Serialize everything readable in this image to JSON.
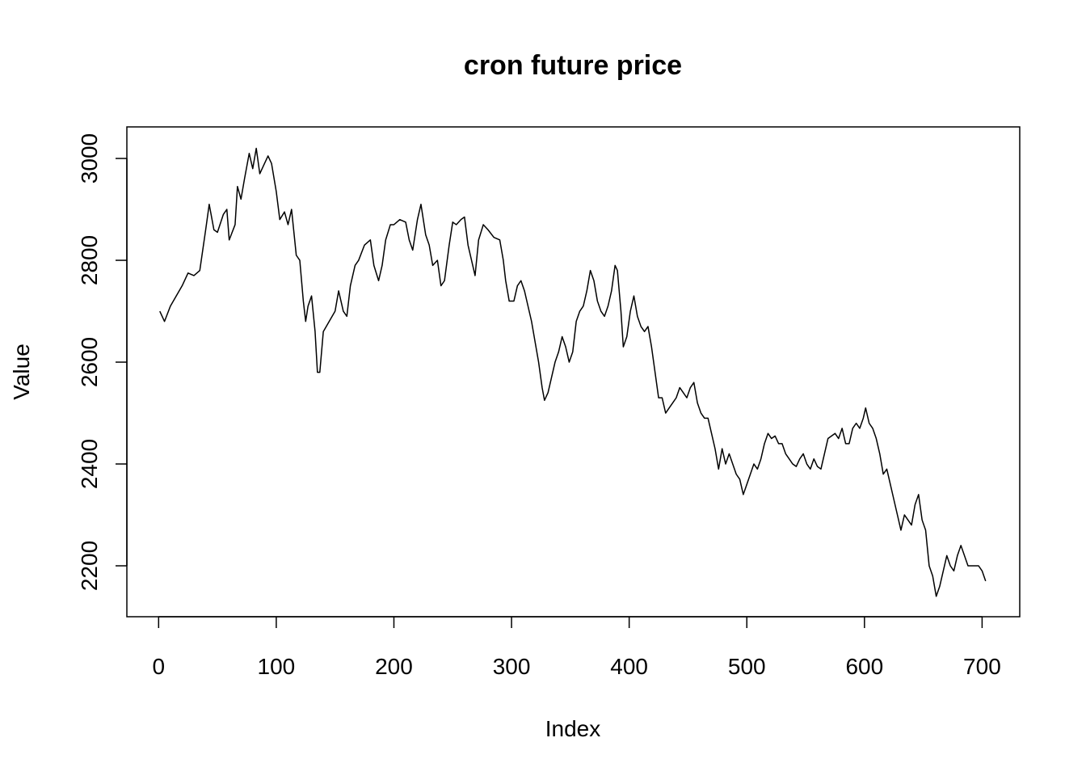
{
  "chart_data": {
    "type": "line",
    "title": "cron future price",
    "x_label": "Index",
    "y_label": "Value",
    "x": [
      1,
      5,
      10,
      15,
      20,
      25,
      30,
      35,
      40,
      43,
      47,
      50,
      55,
      58,
      60,
      65,
      67,
      70,
      73,
      77,
      80,
      83,
      86,
      90,
      93,
      96,
      100,
      103,
      107,
      110,
      113,
      117,
      120,
      123,
      125,
      127,
      130,
      133,
      135,
      137,
      140,
      145,
      150,
      153,
      157,
      160,
      163,
      167,
      170,
      175,
      180,
      183,
      187,
      190,
      193,
      197,
      200,
      205,
      210,
      213,
      216,
      220,
      223,
      227,
      230,
      233,
      237,
      240,
      243,
      247,
      250,
      253,
      257,
      260,
      263,
      266,
      269,
      272,
      276,
      280,
      285,
      290,
      293,
      295,
      298,
      302,
      305,
      308,
      311,
      314,
      317,
      320,
      323,
      326,
      328,
      331,
      334,
      337,
      340,
      343,
      346,
      349,
      352,
      355,
      358,
      361,
      364,
      367,
      370,
      373,
      376,
      379,
      382,
      385,
      388,
      390,
      393,
      395,
      398,
      401,
      404,
      407,
      410,
      413,
      416,
      419,
      422,
      425,
      428,
      431,
      434,
      437,
      440,
      443,
      446,
      449,
      452,
      455,
      458,
      461,
      464,
      467,
      470,
      473,
      476,
      479,
      482,
      485,
      488,
      491,
      494,
      497,
      500,
      503,
      506,
      509,
      512,
      515,
      518,
      521,
      524,
      527,
      530,
      533,
      536,
      539,
      542,
      545,
      548,
      551,
      554,
      557,
      560,
      563,
      566,
      569,
      572,
      575,
      578,
      581,
      584,
      587,
      590,
      593,
      596,
      599,
      601,
      604,
      607,
      610,
      613,
      616,
      619,
      622,
      625,
      628,
      631,
      634,
      637,
      640,
      643,
      646,
      649,
      652,
      655,
      658,
      661,
      664,
      667,
      670,
      673,
      676,
      679,
      682,
      685,
      688,
      691,
      694,
      697,
      700,
      703
    ],
    "series": [
      {
        "name": "Value",
        "color": "#000000",
        "values": [
          2700,
          2680,
          2710,
          2730,
          2750,
          2775,
          2770,
          2780,
          2860,
          2910,
          2860,
          2855,
          2890,
          2900,
          2840,
          2870,
          2945,
          2920,
          2960,
          3010,
          2980,
          3020,
          2970,
          2990,
          3005,
          2990,
          2935,
          2880,
          2895,
          2870,
          2900,
          2810,
          2800,
          2720,
          2680,
          2710,
          2730,
          2660,
          2580,
          2580,
          2660,
          2680,
          2700,
          2740,
          2700,
          2690,
          2750,
          2790,
          2800,
          2830,
          2840,
          2790,
          2760,
          2790,
          2840,
          2870,
          2870,
          2880,
          2875,
          2840,
          2820,
          2880,
          2910,
          2850,
          2830,
          2790,
          2800,
          2750,
          2760,
          2830,
          2875,
          2870,
          2880,
          2885,
          2830,
          2800,
          2770,
          2840,
          2870,
          2860,
          2845,
          2840,
          2800,
          2760,
          2720,
          2720,
          2750,
          2760,
          2740,
          2710,
          2680,
          2640,
          2600,
          2550,
          2525,
          2540,
          2570,
          2600,
          2620,
          2650,
          2630,
          2600,
          2620,
          2680,
          2700,
          2710,
          2740,
          2780,
          2760,
          2720,
          2700,
          2690,
          2710,
          2740,
          2790,
          2780,
          2700,
          2630,
          2650,
          2700,
          2730,
          2690,
          2670,
          2660,
          2670,
          2630,
          2580,
          2530,
          2530,
          2500,
          2510,
          2520,
          2530,
          2550,
          2540,
          2530,
          2550,
          2560,
          2520,
          2500,
          2490,
          2490,
          2460,
          2430,
          2390,
          2430,
          2400,
          2420,
          2400,
          2380,
          2370,
          2340,
          2360,
          2380,
          2400,
          2390,
          2410,
          2440,
          2460,
          2450,
          2455,
          2440,
          2440,
          2420,
          2410,
          2400,
          2395,
          2410,
          2420,
          2400,
          2390,
          2410,
          2395,
          2390,
          2420,
          2450,
          2455,
          2460,
          2450,
          2470,
          2440,
          2440,
          2470,
          2480,
          2470,
          2490,
          2510,
          2480,
          2470,
          2450,
          2420,
          2380,
          2390,
          2360,
          2330,
          2300,
          2270,
          2300,
          2290,
          2280,
          2320,
          2340,
          2290,
          2270,
          2200,
          2180,
          2140,
          2160,
          2190,
          2220,
          2200,
          2190,
          2220,
          2240,
          2220,
          2200,
          2200,
          2200,
          2200,
          2190,
          2170
        ]
      }
    ],
    "xlim": [
      -27,
      732
    ],
    "ylim": [
      2100,
      3062
    ],
    "xticks": [
      0,
      100,
      200,
      300,
      400,
      500,
      600,
      700
    ],
    "yticks": [
      2200,
      2400,
      2600,
      2800,
      3000
    ],
    "grid": false
  }
}
